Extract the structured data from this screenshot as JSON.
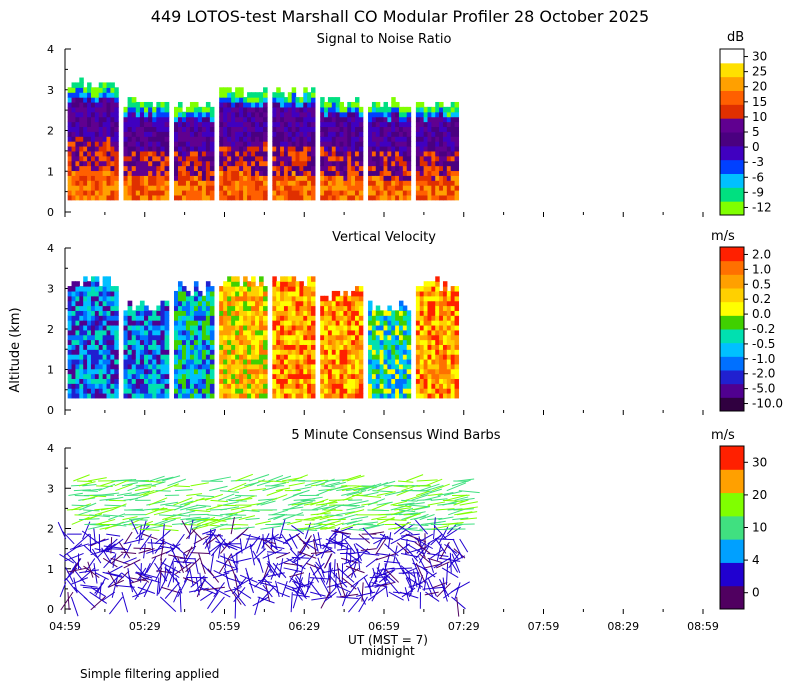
{
  "title": "449 LOTOS-test Marshall CO Modular Profiler 28 October 2025",
  "footer_note": "Simple filtering applied",
  "colors": {
    "snr_scale": [
      "#80ff00",
      "#00e080",
      "#00c0ff",
      "#0040ff",
      "#4000c0",
      "#4a0080",
      "#600090",
      "#e03000",
      "#ff6000",
      "#ffa000",
      "#ffe000",
      "#ffffff"
    ],
    "velocity_scale": [
      "#300040",
      "#500090",
      "#2020d0",
      "#0070ff",
      "#00c0ff",
      "#00e0b0",
      "#40d000",
      "#ffff00",
      "#ffd000",
      "#ffa000",
      "#ff7000",
      "#ff2000"
    ],
    "wind_scale": [
      "#500060",
      "#2000d0",
      "#00a0ff",
      "#40e080",
      "#80ff00",
      "#ffa000",
      "#ff2000"
    ]
  },
  "chart_data": [
    {
      "type": "heatmap",
      "title": "Signal to Noise Ratio",
      "units_label": "dB",
      "ylim": [
        0,
        4
      ],
      "y_ticks": [
        "0",
        "1",
        "2",
        "3",
        "4"
      ],
      "x_ticks": [
        "04:59",
        "05:29",
        "05:59",
        "06:29",
        "06:59",
        "07:29",
        "07:59",
        "08:29",
        "08:59"
      ],
      "colorbar_labels": [
        "-12",
        "-9",
        "-6",
        "-3",
        "0",
        "5",
        "10",
        "15",
        "20",
        "25",
        "30"
      ],
      "data_windows_ut": [
        [
          "05:00",
          "05:19"
        ],
        [
          "05:21",
          "05:38"
        ],
        [
          "05:40",
          "05:55"
        ],
        [
          "05:57",
          "06:15"
        ],
        [
          "06:17",
          "06:33"
        ],
        [
          "06:35",
          "06:51"
        ],
        [
          "06:53",
          "07:09"
        ],
        [
          "07:11",
          "07:27"
        ]
      ],
      "max_height_km": [
        3.2,
        2.75,
        2.7,
        3.05,
        3.05,
        2.8,
        2.75,
        2.7
      ]
    },
    {
      "type": "heatmap",
      "title": "Vertical Velocity",
      "units_label": "m/s",
      "ylabel": "Altitude (km)",
      "ylim": [
        0,
        4
      ],
      "y_ticks": [
        "0",
        "1",
        "2",
        "3",
        "4"
      ],
      "x_ticks": [
        "04:59",
        "05:29",
        "05:59",
        "06:29",
        "06:59",
        "07:29",
        "07:59",
        "08:29",
        "08:59"
      ],
      "colorbar_labels": [
        "2.0",
        "1.0",
        "0.5",
        "0.2",
        "0.0",
        "-0.2",
        "-0.5",
        "-1.0",
        "-2.0",
        "-5.0",
        "-10.0"
      ],
      "max_height_km": [
        3.3,
        2.7,
        3.1,
        3.3,
        3.3,
        3.0,
        2.7,
        3.2
      ]
    },
    {
      "type": "scatter",
      "title": "5 Minute Consensus Wind Barbs",
      "units_label": "m/s",
      "ylim": [
        0,
        4
      ],
      "y_ticks": [
        "0",
        "1",
        "2",
        "3",
        "4"
      ],
      "x_ticks": [
        "04:59",
        "05:29",
        "05:59",
        "06:29",
        "06:59",
        "07:29",
        "07:59",
        "08:29",
        "08:59"
      ],
      "xlabel": "UT  (MST = 7)",
      "x_sublabel": "midnight",
      "colorbar_labels": [
        "0",
        "4",
        "10",
        "20",
        "30"
      ]
    }
  ]
}
